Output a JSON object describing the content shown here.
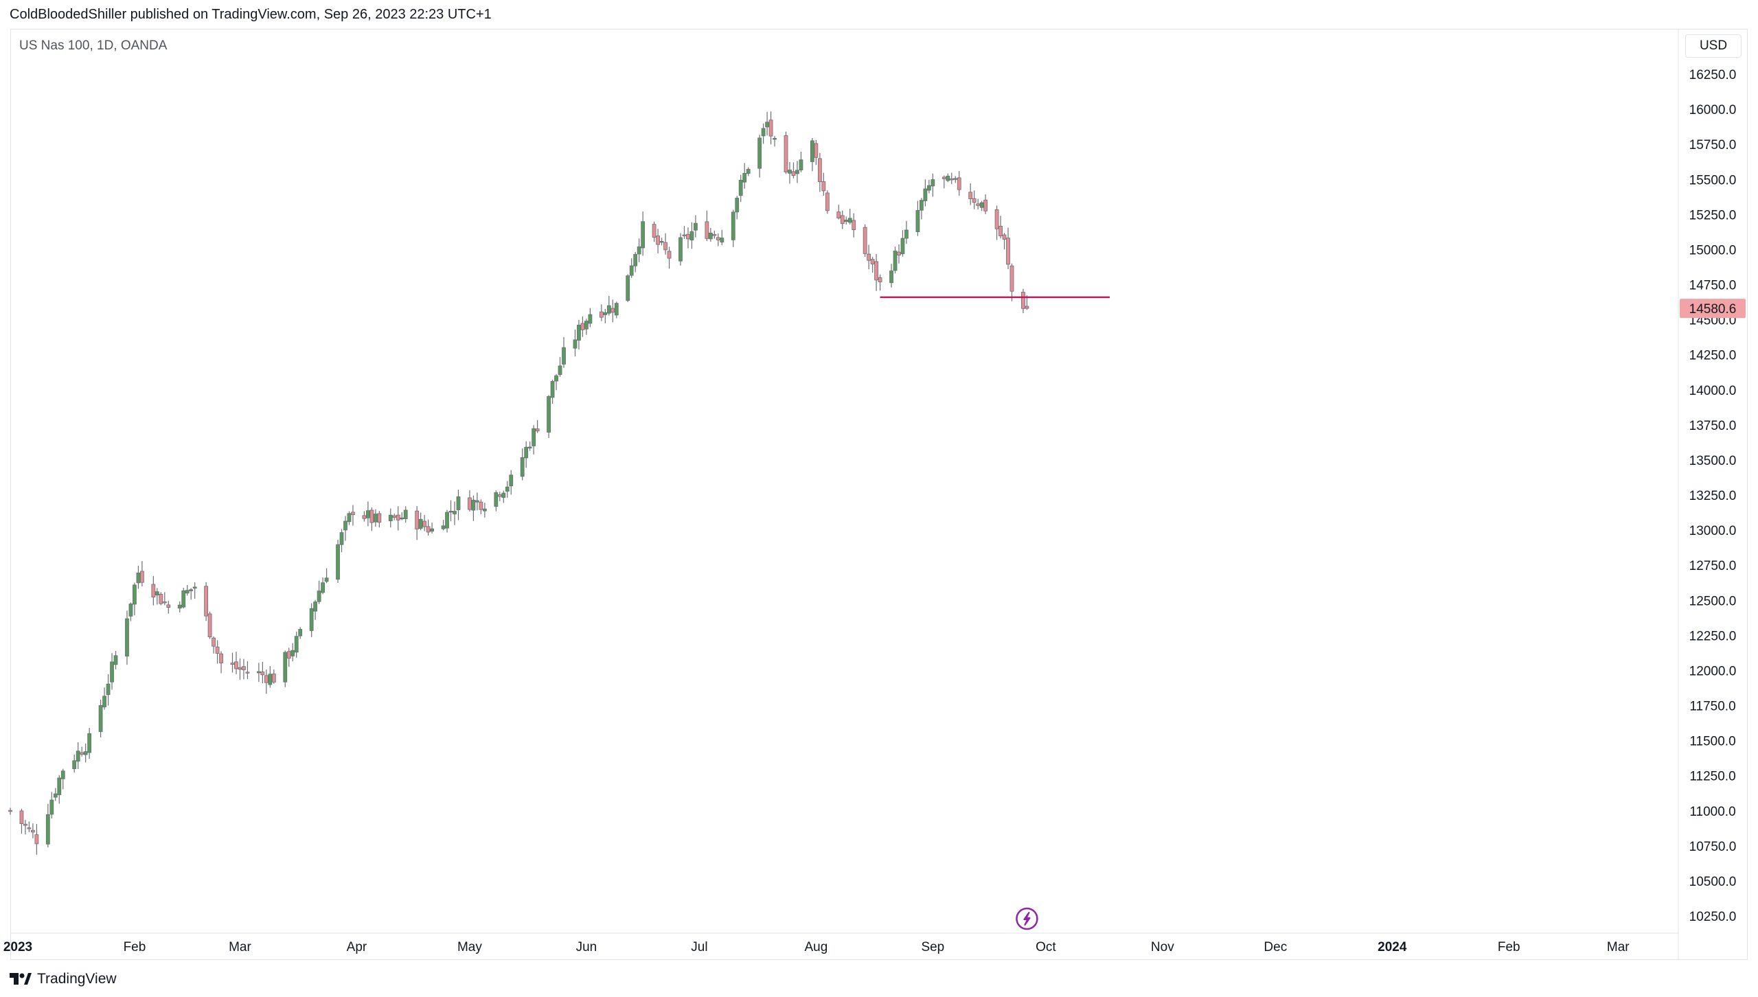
{
  "header": {
    "publisher_line": "ColdBloodedShiller published on TradingView.com, Sep 26, 2023 22:23 UTC+1"
  },
  "legend": {
    "symbol_text": "US Nas 100, 1D, OANDA"
  },
  "price_scale": {
    "currency": "USD"
  },
  "footer": {
    "brand": "TradingView"
  },
  "icons": {
    "event_marker": "lightning-icon",
    "brand_logo": "tradingview-logo-icon"
  },
  "colors": {
    "up": "#5a9a5f",
    "down": "#e38e93",
    "wick": "#6b6e75",
    "support_line": "#c2185b",
    "last_price_bg": "#f2a3a6",
    "event_marker": "#8e24aa",
    "axis_text": "#131722"
  },
  "chart_data": {
    "type": "candlestick",
    "title": "US Nas 100, 1D, OANDA",
    "currency": "USD",
    "ylim": [
      10100,
      16500
    ],
    "y_ticks": [
      10250,
      10500,
      10750,
      11000,
      11250,
      11500,
      11750,
      12000,
      12250,
      12500,
      12750,
      13000,
      13250,
      13500,
      13750,
      14000,
      14250,
      14500,
      14750,
      15000,
      15250,
      15500,
      15750,
      16000,
      16250
    ],
    "y_tick_labels": [
      "10250.0",
      "10500.0",
      "10750.0",
      "11000.0",
      "11250.0",
      "11500.0",
      "11750.0",
      "12000.0",
      "12250.0",
      "12500.0",
      "12750.0",
      "13000.0",
      "13250.0",
      "13500.0",
      "13750.0",
      "14000.0",
      "14250.0",
      "14500.0",
      "14750.0",
      "15000.0",
      "15250.0",
      "15500.0",
      "15750.0",
      "16000.0",
      "16250.0"
    ],
    "x_range": [
      "2022-12-30",
      "2024-03-17"
    ],
    "x_ticks": [
      {
        "label": "2023",
        "date": "2023-01-01",
        "major": true
      },
      {
        "label": "Feb",
        "date": "2023-02-01",
        "major": false
      },
      {
        "label": "Mar",
        "date": "2023-03-01",
        "major": false
      },
      {
        "label": "Apr",
        "date": "2023-04-01",
        "major": false
      },
      {
        "label": "May",
        "date": "2023-05-01",
        "major": false
      },
      {
        "label": "Jun",
        "date": "2023-06-01",
        "major": false
      },
      {
        "label": "Jul",
        "date": "2023-07-01",
        "major": false
      },
      {
        "label": "Aug",
        "date": "2023-08-01",
        "major": false
      },
      {
        "label": "Sep",
        "date": "2023-09-01",
        "major": false
      },
      {
        "label": "Oct",
        "date": "2023-10-01",
        "major": false
      },
      {
        "label": "Nov",
        "date": "2023-11-01",
        "major": false
      },
      {
        "label": "Dec",
        "date": "2023-12-01",
        "major": false
      },
      {
        "label": "2024",
        "date": "2024-01-01",
        "major": true
      },
      {
        "label": "Feb",
        "date": "2024-02-01",
        "major": false
      },
      {
        "label": "Mar",
        "date": "2024-03-01",
        "major": false
      }
    ],
    "last_price": 14580.6,
    "last_price_label": "14580.6",
    "support_line": {
      "price": 14660,
      "from": "2023-08-18",
      "to": "2023-10-18"
    },
    "event_marker_date": "2023-09-26",
    "monthly_anchors": [
      {
        "date": "2022-12-30",
        "close": 11000
      },
      {
        "date": "2023-01-06",
        "close": 10800
      },
      {
        "date": "2023-01-13",
        "close": 11300
      },
      {
        "date": "2023-01-20",
        "close": 11500
      },
      {
        "date": "2023-01-27",
        "close": 12100
      },
      {
        "date": "2023-02-02",
        "close": 12700
      },
      {
        "date": "2023-02-10",
        "close": 12450
      },
      {
        "date": "2023-02-17",
        "close": 12600
      },
      {
        "date": "2023-02-24",
        "close": 12050
      },
      {
        "date": "2023-03-02",
        "close": 12000
      },
      {
        "date": "2023-03-10",
        "close": 11950
      },
      {
        "date": "2023-03-17",
        "close": 12250
      },
      {
        "date": "2023-03-24",
        "close": 12700
      },
      {
        "date": "2023-03-31",
        "close": 13150
      },
      {
        "date": "2023-04-07",
        "close": 13050
      },
      {
        "date": "2023-04-14",
        "close": 13100
      },
      {
        "date": "2023-04-21",
        "close": 13000
      },
      {
        "date": "2023-04-28",
        "close": 13200
      },
      {
        "date": "2023-05-05",
        "close": 13200
      },
      {
        "date": "2023-05-12",
        "close": 13350
      },
      {
        "date": "2023-05-19",
        "close": 13750
      },
      {
        "date": "2023-05-26",
        "close": 14250
      },
      {
        "date": "2023-06-02",
        "close": 14550
      },
      {
        "date": "2023-06-09",
        "close": 14600
      },
      {
        "date": "2023-06-16",
        "close": 15150
      },
      {
        "date": "2023-06-23",
        "close": 14950
      },
      {
        "date": "2023-06-30",
        "close": 15150
      },
      {
        "date": "2023-07-07",
        "close": 15100
      },
      {
        "date": "2023-07-14",
        "close": 15600
      },
      {
        "date": "2023-07-19",
        "close": 15900
      },
      {
        "date": "2023-07-24",
        "close": 15500
      },
      {
        "date": "2023-07-31",
        "close": 15750
      },
      {
        "date": "2023-08-04",
        "close": 15300
      },
      {
        "date": "2023-08-11",
        "close": 15150
      },
      {
        "date": "2023-08-18",
        "close": 14750
      },
      {
        "date": "2023-08-25",
        "close": 15100
      },
      {
        "date": "2023-09-01",
        "close": 15500
      },
      {
        "date": "2023-09-08",
        "close": 15450
      },
      {
        "date": "2023-09-15",
        "close": 15300
      },
      {
        "date": "2023-09-20",
        "close": 15050
      },
      {
        "date": "2023-09-22",
        "close": 14700
      },
      {
        "date": "2023-09-26",
        "close": 14580
      }
    ]
  }
}
